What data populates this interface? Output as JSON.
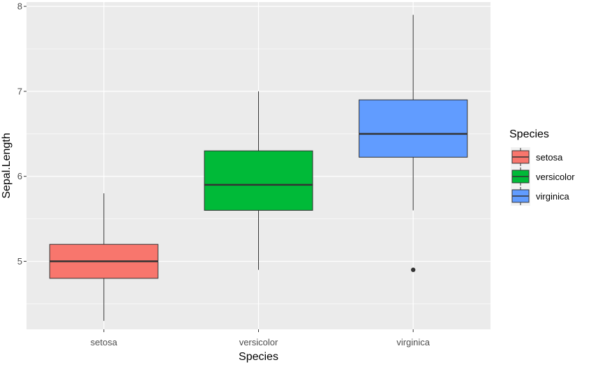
{
  "chart_data": {
    "type": "boxplot",
    "title": "",
    "xlabel": "Species",
    "ylabel": "Sepal.Length",
    "categories": [
      "setosa",
      "versicolor",
      "virginica"
    ],
    "ylim": [
      4.2,
      8.05
    ],
    "yticks": [
      5,
      6,
      7,
      8
    ],
    "grid": true,
    "panel_background": "#ebebeb",
    "grid_color": "#ffffff",
    "series": [
      {
        "name": "setosa",
        "color": "#F8766D",
        "min": 4.3,
        "q1": 4.8,
        "median": 5.0,
        "q3": 5.2,
        "max": 5.8,
        "outliers": []
      },
      {
        "name": "versicolor",
        "color": "#00BA38",
        "min": 4.9,
        "q1": 5.6,
        "median": 5.9,
        "q3": 6.3,
        "max": 7.0,
        "outliers": []
      },
      {
        "name": "virginica",
        "color": "#619CFF",
        "min": 5.6,
        "q1": 6.225,
        "median": 6.5,
        "q3": 6.9,
        "max": 7.9,
        "outliers": [
          4.9
        ]
      }
    ],
    "legend": {
      "title": "Species",
      "position": "right",
      "entries": [
        "setosa",
        "versicolor",
        "virginica"
      ]
    }
  }
}
